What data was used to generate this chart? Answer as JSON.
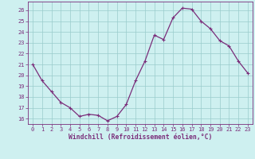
{
  "x": [
    0,
    1,
    2,
    3,
    4,
    5,
    6,
    7,
    8,
    9,
    10,
    11,
    12,
    13,
    14,
    15,
    16,
    17,
    18,
    19,
    20,
    21,
    22,
    23
  ],
  "y": [
    21,
    19.5,
    18.5,
    17.5,
    17,
    16.2,
    16.4,
    16.3,
    15.8,
    16.2,
    17.3,
    19.5,
    21.3,
    23.7,
    23.3,
    25.3,
    26.2,
    26.1,
    25.0,
    24.3,
    23.2,
    22.7,
    21.3,
    20.2
  ],
  "line_color": "#7a2d7a",
  "marker": "+",
  "marker_size": 3.5,
  "linewidth": 0.9,
  "bg_color": "#cef0f0",
  "grid_color": "#99cccc",
  "tick_color": "#7a2d7a",
  "label_color": "#7a2d7a",
  "xlabel": "Windchill (Refroidissement éolien,°C)",
  "ylim": [
    15.5,
    26.8
  ],
  "xlim": [
    -0.5,
    23.5
  ],
  "yticks": [
    16,
    17,
    18,
    19,
    20,
    21,
    22,
    23,
    24,
    25,
    26
  ],
  "xticks": [
    0,
    1,
    2,
    3,
    4,
    5,
    6,
    7,
    8,
    9,
    10,
    11,
    12,
    13,
    14,
    15,
    16,
    17,
    18,
    19,
    20,
    21,
    22,
    23
  ],
  "axis_label_fontsize": 5.8,
  "tick_fontsize": 5.0
}
